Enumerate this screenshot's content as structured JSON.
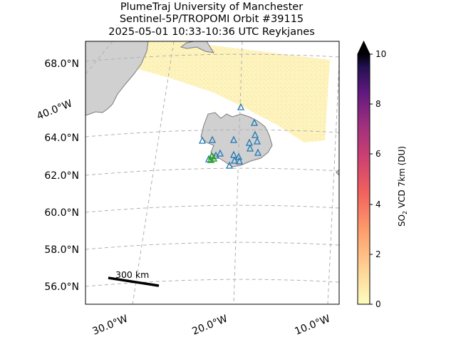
{
  "title": {
    "line1": "PlumeTraj    University of Manchester",
    "line2": "Sentinel-5P/TROPOMI Orbit #39115",
    "line3": "2025-05-01   10:33-10:36 UTC   Reykjanes"
  },
  "map": {
    "lat_labels": [
      "68.0°N",
      "64.0°N",
      "62.0°N",
      "60.0°N",
      "58.0°N",
      "56.0°N"
    ],
    "lon_labels_bottom": [
      "30.0°W",
      "20.0°W",
      "10.0°W"
    ],
    "lon_label_left": "40.0°W",
    "scale_bar_label": "300 km",
    "volcano_name": "Reykjanes",
    "stations_marker_color": "#1f77b4",
    "volcano_marker_color": "#2ca02c",
    "land_color": "#d0d0d0"
  },
  "colorbar": {
    "label_prefix": "SO",
    "label_sub": "2",
    "label_suffix": " VCD 7km (DU)",
    "ticks": [
      "0",
      "2",
      "4",
      "6",
      "8",
      "10"
    ],
    "min": 0,
    "max": 10,
    "extend": "max",
    "colormap": "magma_r"
  }
}
